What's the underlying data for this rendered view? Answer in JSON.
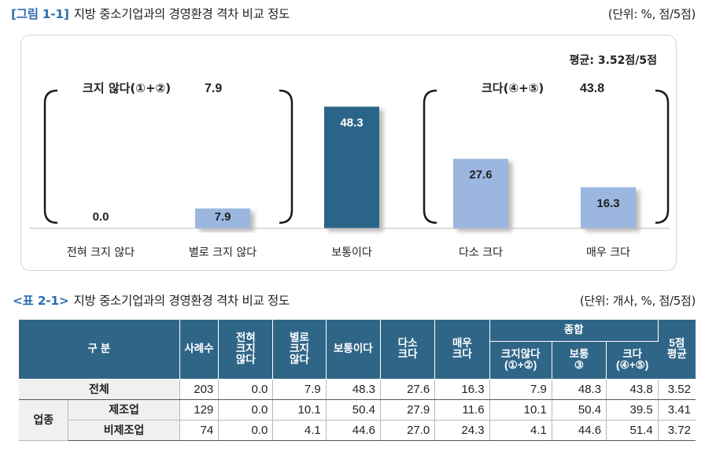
{
  "figure": {
    "number": "[그림 1-1]",
    "title": "지방 중소기업과의 경영환경 격차 비교 정도",
    "unit": "(단위: %, 점/5점)"
  },
  "chart_data": {
    "type": "bar",
    "categories": [
      "전혀 크지 않다",
      "별로 크지 않다",
      "보통이다",
      "다소 크다",
      "매우 크다"
    ],
    "values": [
      0.0,
      7.9,
      48.3,
      27.6,
      16.3
    ],
    "value_labels": [
      "0.0",
      "7.9",
      "48.3",
      "27.6",
      "16.3"
    ],
    "ylim": [
      0,
      60
    ],
    "bar_colors": [
      "#9bb7df",
      "#9bb7df",
      "#2b6589",
      "#9bb7df",
      "#9bb7df"
    ],
    "label_colors": [
      "#222222",
      "#222222",
      "#ffffff",
      "#222222",
      "#222222"
    ],
    "average_label": "평균: 3.52점/5점",
    "groups": [
      {
        "label": "크지 않다(①+②)",
        "value": "7.9"
      },
      {
        "label": "크다(④+⑤)",
        "value": "43.8"
      }
    ]
  },
  "table": {
    "number": "<표 2-1>",
    "title": "지방 중소기업과의 경영환경 격차 비교 정도",
    "unit": "(단위: 개사, %, 점/5점)",
    "header": {
      "category": "구 분",
      "count": "사례수",
      "col1": [
        "전혀",
        "크지",
        "않다"
      ],
      "col2": [
        "별로",
        "크지",
        "않다"
      ],
      "col3": "보통이다",
      "col4": [
        "다소",
        "크다"
      ],
      "col5": [
        "매우",
        "크다"
      ],
      "summary": "종합",
      "sum1": [
        "크지않다",
        "(①+②)"
      ],
      "sum2": [
        "보통",
        "③"
      ],
      "sum3": [
        "크다",
        "(④+⑤)"
      ],
      "avg": [
        "5점",
        "평균"
      ]
    },
    "total_row": {
      "label": "전체",
      "values": [
        "203",
        "0.0",
        "7.9",
        "48.3",
        "27.6",
        "16.3",
        "7.9",
        "48.3",
        "43.8",
        "3.52"
      ]
    },
    "group_label": "업종",
    "group_rows": [
      {
        "label": "제조업",
        "values": [
          "129",
          "0.0",
          "10.1",
          "50.4",
          "27.9",
          "11.6",
          "10.1",
          "50.4",
          "39.5",
          "3.41"
        ]
      },
      {
        "label": "비제조업",
        "values": [
          "74",
          "0.0",
          "4.1",
          "44.6",
          "27.0",
          "24.3",
          "4.1",
          "44.6",
          "51.4",
          "3.72"
        ]
      }
    ]
  }
}
